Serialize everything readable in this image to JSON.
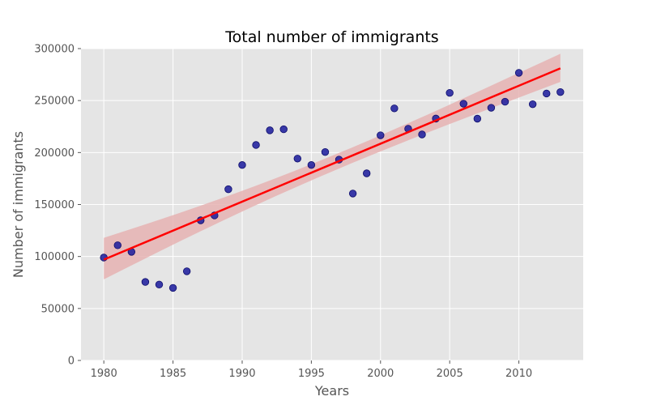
{
  "chart_data": {
    "type": "scatter",
    "title": "Total number of immigrants",
    "xlabel": "Years",
    "ylabel": "Number of immigrants",
    "xlim": [
      1978.35,
      2014.65
    ],
    "ylim": [
      0,
      300000
    ],
    "xticks": [
      1980,
      1985,
      1990,
      1995,
      2000,
      2005,
      2010
    ],
    "yticks": [
      0,
      50000,
      100000,
      150000,
      200000,
      250000,
      300000
    ],
    "grid": true,
    "x": [
      1980,
      1981,
      1982,
      1983,
      1984,
      1985,
      1986,
      1987,
      1988,
      1989,
      1990,
      1991,
      1992,
      1993,
      1994,
      1995,
      1996,
      1997,
      1998,
      1999,
      2000,
      2001,
      2002,
      2003,
      2004,
      2005,
      2006,
      2007,
      2008,
      2009,
      2010,
      2011,
      2012,
      2013
    ],
    "y": [
      99000,
      110800,
      104500,
      75500,
      73000,
      69800,
      85800,
      134800,
      139500,
      164700,
      188000,
      207300,
      221400,
      222400,
      194200,
      188000,
      200500,
      193200,
      160600,
      180000,
      216600,
      242500,
      222900,
      217400,
      232700,
      257400,
      247000,
      232600,
      243100,
      248900,
      276700,
      246500,
      256800,
      258200
    ],
    "regression": {
      "start": [
        1980,
        97000
      ],
      "end": [
        2013,
        281000
      ],
      "ci_lower_start": 78000,
      "ci_upper_start": 118000,
      "ci_lower_end": 268000,
      "ci_upper_end": 295000
    },
    "colors": {
      "points": "#1a1a9c",
      "line": "#ff0000",
      "band": "#e6b3b3",
      "background": "#e5e5e5",
      "grid": "#ffffff"
    }
  }
}
